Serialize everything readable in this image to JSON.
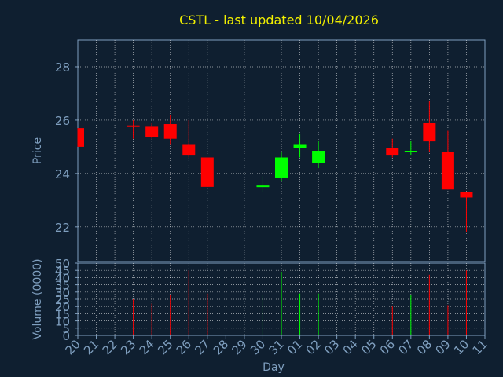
{
  "chart_data": {
    "type": "candlestick",
    "title": "CSTL - last updated 10/04/2026",
    "price_axis": {
      "label": "Price",
      "ylim": [
        20.7,
        29.0
      ],
      "ticks": [
        22,
        24,
        26,
        28
      ]
    },
    "volume_axis": {
      "label": "Volume (0000)",
      "ylim": [
        0,
        50
      ],
      "ticks": [
        0,
        5,
        10,
        15,
        20,
        25,
        30,
        35,
        40,
        45,
        50
      ]
    },
    "xlabel": "Day",
    "x_ticks": [
      "20",
      "21",
      "22",
      "23",
      "24",
      "25",
      "26",
      "27",
      "28",
      "29",
      "30",
      "31",
      "01",
      "02",
      "03",
      "04",
      "05",
      "06",
      "07",
      "08",
      "09",
      "10",
      "11"
    ],
    "grid": true,
    "colors": {
      "background": "#0f1f30",
      "up": "#00ff00",
      "down": "#ff0000",
      "axes": "#7f9fbf",
      "title": "#f2f000",
      "grid": "#ffffff"
    },
    "candles": [
      {
        "day": "20",
        "open": 25.7,
        "high": 25.7,
        "low": 25.0,
        "close": 25.0,
        "volume": 0
      },
      {
        "day": "23",
        "open": 25.8,
        "high": 26.0,
        "low": 25.3,
        "close": 25.75,
        "volume": 25
      },
      {
        "day": "24",
        "open": 25.75,
        "high": 25.9,
        "low": 25.3,
        "close": 25.35,
        "volume": 22
      },
      {
        "day": "25",
        "open": 25.85,
        "high": 26.2,
        "low": 25.1,
        "close": 25.3,
        "volume": 28
      },
      {
        "day": "26",
        "open": 25.1,
        "high": 26.0,
        "low": 24.6,
        "close": 24.7,
        "volume": 45
      },
      {
        "day": "27",
        "open": 24.6,
        "high": 24.6,
        "low": 23.5,
        "close": 23.5,
        "volume": 29
      },
      {
        "day": "30",
        "open": 23.5,
        "high": 23.9,
        "low": 23.3,
        "close": 23.55,
        "volume": 28
      },
      {
        "day": "31",
        "open": 23.85,
        "high": 24.8,
        "low": 23.7,
        "close": 24.6,
        "volume": 44
      },
      {
        "day": "01",
        "open": 24.95,
        "high": 25.5,
        "low": 24.6,
        "close": 25.1,
        "volume": 29
      },
      {
        "day": "02",
        "open": 24.4,
        "high": 25.2,
        "low": 24.2,
        "close": 24.85,
        "volume": 29
      },
      {
        "day": "06",
        "open": 24.95,
        "high": 25.3,
        "low": 24.6,
        "close": 24.7,
        "volume": 20
      },
      {
        "day": "07",
        "open": 24.8,
        "high": 25.2,
        "low": 24.7,
        "close": 24.85,
        "volume": 28
      },
      {
        "day": "08",
        "open": 25.9,
        "high": 26.7,
        "low": 24.8,
        "close": 25.2,
        "volume": 42
      },
      {
        "day": "09",
        "open": 24.8,
        "high": 25.6,
        "low": 23.4,
        "close": 23.4,
        "volume": 21
      },
      {
        "day": "10",
        "open": 23.3,
        "high": 23.3,
        "low": 21.8,
        "close": 23.1,
        "volume": 45
      }
    ]
  }
}
